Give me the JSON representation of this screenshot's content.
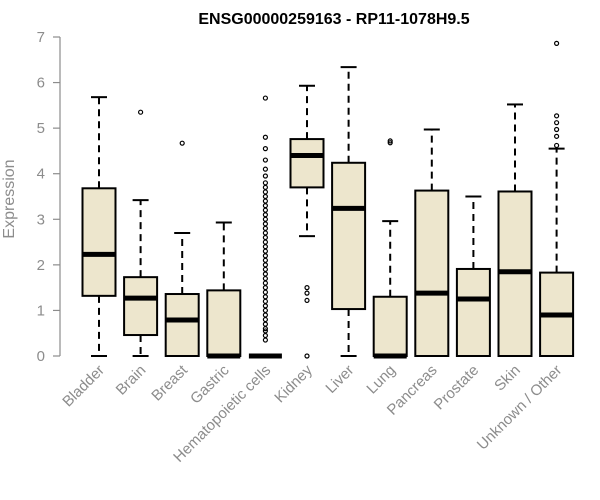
{
  "chart_data": {
    "type": "box",
    "title": "ENSG00000259163 - RP11-1078H9.5",
    "ylabel": "Expression",
    "ylim": [
      0,
      7
    ],
    "yticks": [
      0,
      1,
      2,
      3,
      4,
      5,
      6,
      7
    ],
    "box_fill": "#ede6cd",
    "outline": "#000000",
    "axis_color": "#8c8c8c",
    "categories": [
      "Bladder",
      "Brain",
      "Breast",
      "Gastric",
      "Hematopoietic cells",
      "Kidney",
      "Liver",
      "Lung",
      "Pancreas",
      "Prostate",
      "Skin",
      "Unknown / Other"
    ],
    "boxes": [
      {
        "min": 0,
        "q1": 1.32,
        "median": 2.23,
        "q3": 3.68,
        "max": 5.68,
        "outliers": []
      },
      {
        "min": 0,
        "q1": 0.46,
        "median": 1.27,
        "q3": 1.73,
        "max": 3.42,
        "outliers": [
          5.35
        ]
      },
      {
        "min": 0,
        "q1": 0,
        "median": 0.79,
        "q3": 1.36,
        "max": 2.7,
        "outliers": [
          4.67
        ]
      },
      {
        "min": 0,
        "q1": 0,
        "median": 0,
        "q3": 1.44,
        "max": 2.93,
        "outliers": []
      },
      {
        "min": 0,
        "q1": 0,
        "median": 0,
        "q3": 0,
        "max": 0,
        "outliers": [
          0.35,
          0.45,
          0.55,
          0.6,
          0.7,
          0.8,
          0.9,
          1.0,
          1.1,
          1.2,
          1.3,
          1.4,
          1.5,
          1.6,
          1.7,
          1.8,
          1.9,
          2.0,
          2.1,
          2.2,
          2.3,
          2.4,
          2.5,
          2.6,
          2.7,
          2.8,
          2.9,
          3.0,
          3.1,
          3.2,
          3.3,
          3.4,
          3.5,
          3.6,
          3.7,
          3.8,
          3.95,
          4.1,
          4.3,
          4.55,
          4.8,
          5.66
        ]
      },
      {
        "min": 2.63,
        "q1": 3.7,
        "median": 4.4,
        "q3": 4.76,
        "max": 5.93,
        "outliers": [
          1.5,
          1.38,
          1.22,
          0
        ]
      },
      {
        "min": 0,
        "q1": 1.03,
        "median": 3.24,
        "q3": 4.24,
        "max": 6.34,
        "outliers": []
      },
      {
        "min": 0,
        "q1": 0,
        "median": 0,
        "q3": 1.3,
        "max": 2.96,
        "outliers": [
          4.68,
          4.72
        ]
      },
      {
        "min": 0,
        "q1": 0,
        "median": 1.38,
        "q3": 3.63,
        "max": 4.97,
        "outliers": []
      },
      {
        "min": 0,
        "q1": 0,
        "median": 1.25,
        "q3": 1.91,
        "max": 3.5,
        "outliers": []
      },
      {
        "min": 0,
        "q1": 0,
        "median": 1.85,
        "q3": 3.61,
        "max": 5.52,
        "outliers": []
      },
      {
        "min": 0,
        "q1": 0,
        "median": 0.9,
        "q3": 1.83,
        "max": 4.55,
        "outliers": [
          4.62,
          4.82,
          4.97,
          5.12,
          5.27,
          6.86
        ]
      }
    ]
  }
}
